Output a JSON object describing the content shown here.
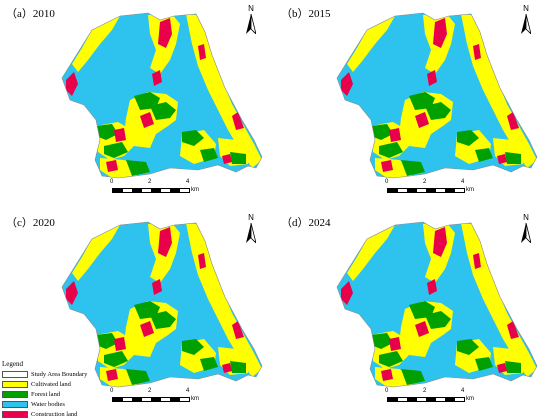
{
  "panels": [
    {
      "label": "（a）2010",
      "north": "N",
      "scale_ticks": [
        "0",
        "2",
        "4"
      ],
      "scale_unit": "km"
    },
    {
      "label": "（b）2015",
      "north": "N",
      "scale_ticks": [
        "0",
        "2",
        "4"
      ],
      "scale_unit": "km"
    },
    {
      "label": "（c）2020",
      "north": "N",
      "scale_ticks": [
        "0",
        "2",
        "4"
      ],
      "scale_unit": "km"
    },
    {
      "label": "（d）2024",
      "north": "N",
      "scale_ticks": [
        "0",
        "2",
        "4"
      ],
      "scale_unit": "km"
    }
  ],
  "legend": {
    "title": "Legend",
    "items": [
      {
        "label": "Study Area Boundary",
        "color": "#ffffff"
      },
      {
        "label": "Cultivated land",
        "color": "#ffff00"
      },
      {
        "label": "Forest land",
        "color": "#00a000"
      },
      {
        "label": "Water bodies",
        "color": "#2ec3ee"
      },
      {
        "label": "Construction land",
        "color": "#e8004a"
      }
    ]
  }
}
